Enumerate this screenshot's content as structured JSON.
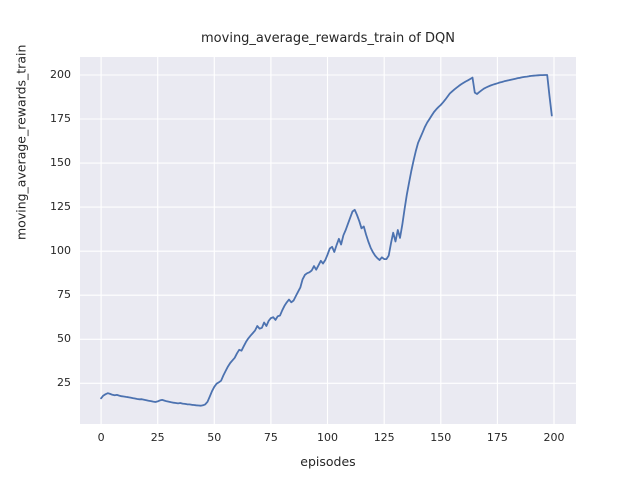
{
  "chart_data": {
    "type": "line",
    "title": "moving_average_rewards_train of DQN",
    "xlabel": "episodes",
    "ylabel": "moving_average_rewards_train",
    "x_ticks": [
      0,
      25,
      50,
      75,
      100,
      125,
      150,
      175,
      200
    ],
    "y_ticks": [
      25,
      50,
      75,
      100,
      125,
      150,
      175,
      200
    ],
    "xlim": [
      -9.3,
      209.7
    ],
    "ylim": [
      1.9,
      210.2
    ],
    "grid": true,
    "legend": "none",
    "style": "seaborn-darkgrid",
    "colors": {
      "line": "#4C72B0",
      "plot_bg": "#EAEAF2",
      "grid": "#FFFFFF",
      "text": "#262626",
      "figure_bg": "#FFFFFF"
    },
    "series": [
      {
        "name": "moving_average_rewards_train",
        "x_start": 0,
        "x_step": 1,
        "values": [
          16.5,
          18.0,
          18.8,
          19.4,
          19.0,
          18.5,
          18.2,
          18.4,
          18.0,
          17.7,
          17.5,
          17.3,
          17.1,
          16.9,
          16.6,
          16.4,
          16.1,
          15.9,
          16.0,
          15.7,
          15.4,
          15.1,
          14.9,
          14.6,
          14.4,
          14.7,
          15.3,
          15.6,
          15.2,
          14.8,
          14.5,
          14.2,
          14.0,
          13.8,
          13.6,
          13.8,
          13.5,
          13.3,
          13.1,
          13.0,
          12.8,
          12.7,
          12.5,
          12.4,
          12.3,
          12.5,
          13.0,
          14.5,
          17.5,
          20.5,
          23.0,
          24.8,
          25.5,
          26.5,
          29.5,
          32.0,
          34.5,
          36.5,
          38.0,
          39.5,
          42.0,
          44.0,
          43.5,
          46.0,
          48.5,
          50.5,
          52.0,
          53.5,
          55.0,
          57.5,
          56.0,
          56.5,
          59.5,
          57.5,
          60.5,
          62.0,
          62.5,
          61.0,
          63.0,
          63.5,
          66.5,
          69.0,
          71.0,
          72.5,
          71.0,
          72.0,
          74.5,
          77.0,
          79.5,
          84.0,
          86.5,
          87.5,
          88.0,
          89.0,
          91.5,
          89.5,
          92.0,
          94.5,
          93.0,
          95.0,
          98.0,
          101.5,
          102.5,
          99.5,
          103.5,
          107.0,
          103.8,
          109.0,
          112.0,
          115.5,
          119.0,
          122.5,
          123.5,
          120.5,
          117.0,
          113.0,
          114.0,
          109.5,
          105.5,
          102.0,
          99.5,
          97.5,
          96.0,
          95.0,
          96.5,
          95.5,
          95.5,
          97.5,
          104.5,
          110.5,
          105.5,
          112.0,
          107.5,
          115.0,
          124.0,
          132.0,
          139.0,
          145.5,
          151.5,
          157.0,
          161.5,
          164.5,
          167.5,
          170.5,
          173.0,
          175.0,
          177.0,
          179.0,
          180.5,
          181.8,
          183.0,
          184.5,
          186.0,
          187.8,
          189.5,
          190.7,
          191.8,
          192.8,
          193.8,
          194.7,
          195.5,
          196.3,
          197.0,
          197.7,
          198.5,
          190.0,
          189.2,
          190.3,
          191.3,
          192.2,
          192.9,
          193.5,
          194.0,
          194.5,
          194.9,
          195.3,
          195.7,
          196.0,
          196.4,
          196.7,
          197.0,
          197.3,
          197.6,
          197.9,
          198.2,
          198.4,
          198.7,
          198.9,
          199.1,
          199.3,
          199.5,
          199.6,
          199.7,
          199.8,
          199.9,
          199.9,
          200.0,
          200.0,
          188.0,
          177.0
        ]
      }
    ]
  }
}
